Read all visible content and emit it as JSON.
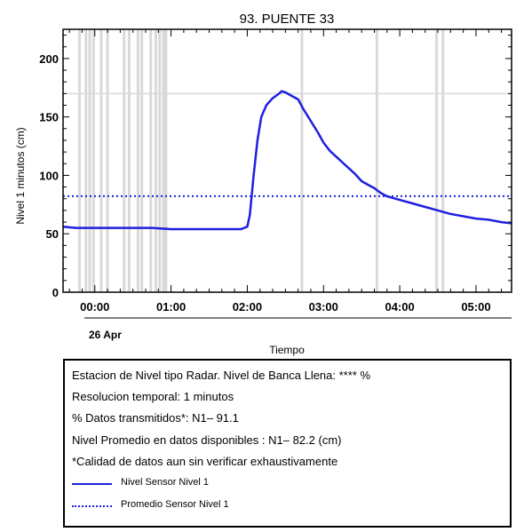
{
  "chart_data": {
    "type": "line",
    "title": "93. PUENTE 33",
    "xlabel": "Tiempo",
    "ylabel": "Nivel 1 minutos (cm)",
    "date_label": "26 Apr",
    "x_ticks": [
      "00:00",
      "01:00",
      "02:00",
      "03:00",
      "04:00",
      "05:00"
    ],
    "y_ticks": [
      0,
      50,
      100,
      150,
      200
    ],
    "xlim": [
      "25 Apr 23:35",
      "26 Apr 05:28"
    ],
    "ylim": [
      0,
      225
    ],
    "threshold_level": 170,
    "missing_data_times": [
      "23:48",
      "23:53",
      "23:56",
      "23:59",
      "00:05",
      "00:10",
      "00:23",
      "00:27",
      "00:34",
      "00:37",
      "00:44",
      "00:48",
      "00:51",
      "00:54",
      "00:56",
      "02:43",
      "03:42",
      "04:29",
      "04:34"
    ],
    "series": [
      {
        "name": "Nivel Sensor Nivel 1",
        "style": "solid",
        "color": "#1f1fe0",
        "points": [
          [
            "23:35",
            56
          ],
          [
            "23:45",
            55
          ],
          [
            "00:00",
            55
          ],
          [
            "00:15",
            55
          ],
          [
            "00:30",
            55
          ],
          [
            "00:45",
            55
          ],
          [
            "01:00",
            54
          ],
          [
            "01:15",
            54
          ],
          [
            "01:30",
            54
          ],
          [
            "01:45",
            54
          ],
          [
            "01:55",
            54
          ],
          [
            "02:00",
            56
          ],
          [
            "02:02",
            66
          ],
          [
            "02:05",
            100
          ],
          [
            "02:08",
            130
          ],
          [
            "02:11",
            150
          ],
          [
            "02:15",
            160
          ],
          [
            "02:20",
            166
          ],
          [
            "02:25",
            170
          ],
          [
            "02:27",
            172
          ],
          [
            "02:30",
            171
          ],
          [
            "02:35",
            168
          ],
          [
            "02:40",
            165
          ],
          [
            "02:44",
            157
          ],
          [
            "02:48",
            150
          ],
          [
            "02:52",
            143
          ],
          [
            "02:56",
            136
          ],
          [
            "03:00",
            128
          ],
          [
            "03:05",
            121
          ],
          [
            "03:10",
            116
          ],
          [
            "03:15",
            111
          ],
          [
            "03:20",
            106
          ],
          [
            "03:25",
            101
          ],
          [
            "03:30",
            95
          ],
          [
            "03:35",
            92
          ],
          [
            "03:40",
            89
          ],
          [
            "03:45",
            85
          ],
          [
            "03:50",
            82
          ],
          [
            "04:00",
            79
          ],
          [
            "04:10",
            76
          ],
          [
            "04:20",
            73
          ],
          [
            "04:30",
            70
          ],
          [
            "04:40",
            67
          ],
          [
            "04:50",
            65
          ],
          [
            "05:00",
            63
          ],
          [
            "05:10",
            62
          ],
          [
            "05:20",
            60
          ],
          [
            "05:28",
            59
          ]
        ]
      },
      {
        "name": "Promedio Sensor Nivel 1",
        "style": "dotted",
        "color": "#1f1fe0",
        "value": 82.2
      }
    ],
    "grid": false
  },
  "info": {
    "line1": "Estacion de Nivel tipo Radar. Nivel de Banca Llena: **** %",
    "line2": "Resolucion temporal: 1 minutos",
    "line3": "% Datos transmitidos*: N1– 91.1",
    "line4": "Nivel Promedio en datos disponibles : N1– 82.2 (cm)",
    "line5": "*Calidad de datos aun sin verificar exhaustivamente",
    "legend_solid": "Nivel Sensor Nivel 1",
    "legend_dotted": "Promedio Sensor Nivel 1"
  }
}
